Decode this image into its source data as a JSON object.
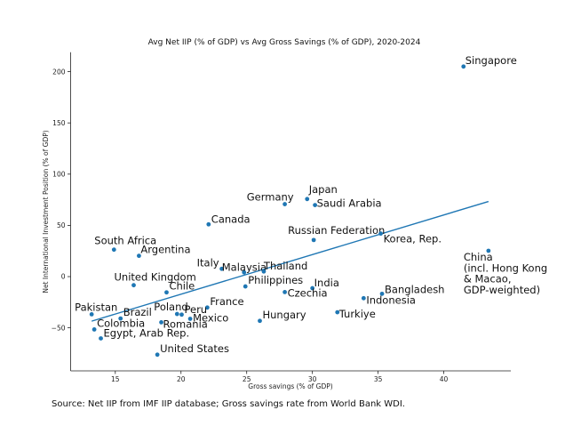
{
  "chart_data": {
    "type": "scatter",
    "title": "Avg Net IIP (% of GDP) vs Avg Gross Savings (% of GDP), 2020-2024",
    "xlabel": "Gross savings (% of GDP)",
    "ylabel": "Net International Investment Position (% of GDP)",
    "xlim": [
      11.6,
      45.1
    ],
    "ylim": [
      -92,
      219
    ],
    "xticks": [
      15,
      20,
      25,
      30,
      35,
      40
    ],
    "yticks": [
      -50,
      0,
      50,
      100,
      150,
      200
    ],
    "grid": false,
    "point_color": "#1f77b4",
    "line_color": "#1f77b4",
    "points": [
      {
        "label": "Singapore",
        "x": 41.5,
        "y": 205
      },
      {
        "label": "Japan",
        "x": 29.6,
        "y": 75.7
      },
      {
        "label": "Germany",
        "x": 27.9,
        "y": 70.7
      },
      {
        "label": "Saudi Arabia",
        "x": 30.2,
        "y": 69.8
      },
      {
        "label": "Canada",
        "x": 22.1,
        "y": 51.0
      },
      {
        "label": "Russian Federation",
        "x": 30.1,
        "y": 35.7
      },
      {
        "label": "Korea, Rep.",
        "x": 35.2,
        "y": 42.0
      },
      {
        "label": "China\n(incl. Hong Kong\n& Macao,\nGDP-weighted)",
        "x": 43.4,
        "y": 25.2
      },
      {
        "label": "South Africa",
        "x": 14.9,
        "y": 26.3
      },
      {
        "label": "Argentina",
        "x": 16.8,
        "y": 20.3
      },
      {
        "label": "Italy",
        "x": 23.1,
        "y": 7.6
      },
      {
        "label": "Malaysia",
        "x": 24.8,
        "y": 4.1
      },
      {
        "label": "Thailand",
        "x": 26.3,
        "y": 5.0
      },
      {
        "label": "Philippines",
        "x": 24.9,
        "y": -9.6
      },
      {
        "label": "India",
        "x": 30.0,
        "y": -11.3
      },
      {
        "label": "Czechia",
        "x": 27.9,
        "y": -15.1
      },
      {
        "label": "Bangladesh",
        "x": 35.3,
        "y": -16.8
      },
      {
        "label": "Indonesia",
        "x": 33.9,
        "y": -21.1
      },
      {
        "label": "Turkiye",
        "x": 31.9,
        "y": -34.8
      },
      {
        "label": "Hungary",
        "x": 26.0,
        "y": -43.2
      },
      {
        "label": "France",
        "x": 22.0,
        "y": -30.2
      },
      {
        "label": "Mexico",
        "x": 20.7,
        "y": -41.2
      },
      {
        "label": "Peru",
        "x": 20.05,
        "y": -37.1
      },
      {
        "label": "Poland",
        "x": 19.7,
        "y": -36.5
      },
      {
        "label": "Romania",
        "x": 18.5,
        "y": -44.6
      },
      {
        "label": "Chile",
        "x": 18.9,
        "y": -15.4
      },
      {
        "label": "United Kingdom",
        "x": 16.4,
        "y": -8.4
      },
      {
        "label": "Pakistan",
        "x": 13.2,
        "y": -36.8
      },
      {
        "label": "Brazil",
        "x": 15.4,
        "y": -40.9
      },
      {
        "label": "Colombia",
        "x": 13.4,
        "y": -51.6
      },
      {
        "label": "Egypt, Arab Rep.",
        "x": 13.9,
        "y": -60.3
      },
      {
        "label": "United States",
        "x": 18.2,
        "y": -76.2
      }
    ],
    "trend_line": {
      "x": [
        13.2,
        43.4
      ],
      "y": [
        -43.5,
        73.3
      ]
    }
  },
  "source_note": "Source: Net IIP from IMF IIP database; Gross savings rate from World Bank WDI."
}
